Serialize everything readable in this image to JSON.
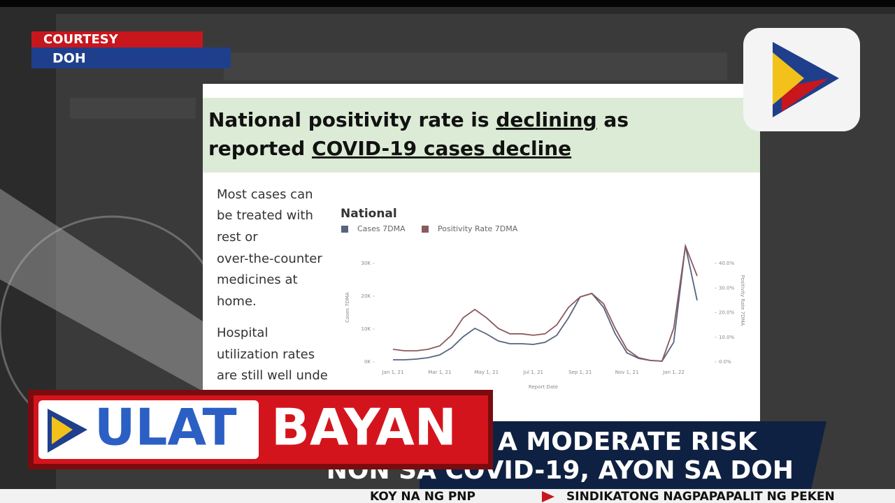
{
  "courtesy": {
    "label": "COURTESY",
    "source": "DOH"
  },
  "slide": {
    "title": [
      [
        "National positivity rate is ",
        "declining",
        " as"
      ],
      [
        "reported ",
        "COVID-19 cases decline"
      ]
    ],
    "body": [
      "Most cases can",
      "be treated with",
      "rest or",
      "over-the-counter",
      "medicines at",
      "home.",
      "Hospital",
      "utilization rates",
      "are still well unde"
    ],
    "chart": {
      "type": "line",
      "title": "National",
      "x_label": "Report Date",
      "y_label": "Cases 7DMA",
      "y2_label": "Positivity Rate 7DMA",
      "categories": [
        "Jan 1, 21",
        null,
        null,
        null,
        "Mar 1, 21",
        null,
        null,
        null,
        "May 1, 21",
        null,
        null,
        null,
        "Jul 1, 21",
        null,
        null,
        null,
        "Sep 1, 21",
        null,
        null,
        null,
        "Nov 1, 21",
        null,
        null,
        null,
        "Jan 1, 22",
        null,
        null
      ],
      "series": [
        {
          "name": "Cases 7DMA",
          "color": "#56647f",
          "values": [
            640,
            640,
            850,
            1280,
            2130,
            4250,
            7660,
            10210,
            8510,
            6380,
            5530,
            5530,
            5320,
            5960,
            8080,
            13400,
            19790,
            20850,
            16590,
            8510,
            2770,
            1060,
            430,
            210,
            5960,
            35310,
            18720
          ]
        },
        {
          "name": "Positivity Rate 7DMA",
          "color": "#8a5a5e",
          "axis": "y2",
          "values": [
            5.1,
            4.5,
            4.5,
            5.1,
            6.5,
            10.8,
            17.9,
            21.3,
            17.9,
            13.6,
            11.4,
            11.4,
            10.8,
            11.4,
            15.0,
            22.1,
            26.4,
            27.8,
            23.6,
            13.6,
            5.1,
            1.7,
            0.6,
            0.3,
            13.6,
            47.1,
            34.9
          ]
        }
      ],
      "ylim": [
        0,
        36800
      ],
      "yticks": [
        {
          "value": 0,
          "label": "0K"
        },
        {
          "value": 10000,
          "label": "10K"
        },
        {
          "value": 20000,
          "label": "20K"
        },
        {
          "value": 30000,
          "label": "30K"
        }
      ],
      "y2lim": [
        0,
        49.1
      ],
      "y2ticks": [
        {
          "value": 0,
          "label": "0.0%"
        },
        {
          "value": 10,
          "label": "10.0%"
        },
        {
          "value": 20,
          "label": "20.0%"
        },
        {
          "value": 30,
          "label": "30.0%"
        },
        {
          "value": 40,
          "label": "40.0%"
        }
      ]
    }
  },
  "lower_third": {
    "program": [
      "ULAT",
      "BAYAN"
    ],
    "headline": [
      "A MODERATE RISK",
      "NON SA COVID-19, AYON SA DOH"
    ]
  },
  "ticker": [
    "KOY NA NG PNP",
    "SINDIKATONG NAGPAPAPALIT NG PEKEN"
  ]
}
